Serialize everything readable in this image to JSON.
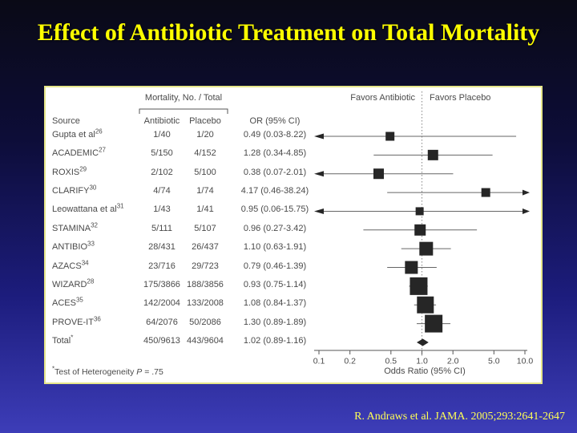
{
  "slide": {
    "title": "Effect of Antibiotic Treatment on Total Mortality",
    "citation": "R. Andraws et al. JAMA. 2005;293:2641-2647"
  },
  "figure": {
    "group_header": "Mortality, No. / Total",
    "favors_left": "Favors Antibiotic",
    "favors_right": "Favors Placebo",
    "xlabel": "Odds Ratio (95% CI)",
    "footnote_symbol": "*",
    "footnote_text": "Test of Heterogeneity ",
    "footnote_stat": "P",
    "footnote_value": " = .75",
    "columns": {
      "source": "Source",
      "antibiotic": "Antibiotic",
      "placebo": "Placebo",
      "or": "OR (95% CI)"
    }
  },
  "chart_data": {
    "type": "forest",
    "x_scale": "log",
    "xlim": [
      0.1,
      10
    ],
    "x_ticks": [
      0.1,
      0.2,
      0.5,
      1.0,
      2.0,
      5.0,
      10.0
    ],
    "x_tick_labels": [
      "0.1",
      "0.2",
      "0.5",
      "1.0",
      "2.0",
      "5.0",
      "10.0"
    ],
    "xlabel": "Odds Ratio (95% CI)",
    "no_effect_line": 1.0,
    "rows": [
      {
        "source": "Gupta et al",
        "ref": "26",
        "antibiotic": "1/40",
        "placebo": "1/20",
        "or_ci": "0.49 (0.03-8.22)",
        "or": 0.49,
        "lo": 0.03,
        "hi": 8.22,
        "size": 11
      },
      {
        "source": "ACADEMIC",
        "ref": "27",
        "antibiotic": "5/150",
        "placebo": "4/152",
        "or_ci": "1.28 (0.34-4.85)",
        "or": 1.28,
        "lo": 0.34,
        "hi": 4.85,
        "size": 13
      },
      {
        "source": "ROXIS",
        "ref": "29",
        "antibiotic": "2/102",
        "placebo": "5/100",
        "or_ci": "0.38 (0.07-2.01)",
        "or": 0.38,
        "lo": 0.07,
        "hi": 2.01,
        "size": 13
      },
      {
        "source": "CLARIFY",
        "ref": "30",
        "antibiotic": "4/74",
        "placebo": "1/74",
        "or_ci": "4.17 (0.46-38.24)",
        "or": 4.17,
        "lo": 0.46,
        "hi": 38.24,
        "size": 11
      },
      {
        "source": "Leowattana et al",
        "ref": "31",
        "antibiotic": "1/43",
        "placebo": "1/41",
        "or_ci": "0.95 (0.06-15.75)",
        "or": 0.95,
        "lo": 0.06,
        "hi": 15.75,
        "size": 10
      },
      {
        "source": "STAMINA",
        "ref": "32",
        "antibiotic": "5/111",
        "placebo": "5/107",
        "or_ci": "0.96 (0.27-3.42)",
        "or": 0.96,
        "lo": 0.27,
        "hi": 3.42,
        "size": 14
      },
      {
        "source": "ANTIBIO",
        "ref": "33",
        "antibiotic": "28/431",
        "placebo": "26/437",
        "or_ci": "1.10 (0.63-1.91)",
        "or": 1.1,
        "lo": 0.63,
        "hi": 1.91,
        "size": 17
      },
      {
        "source": "AZACS",
        "ref": "34",
        "antibiotic": "23/716",
        "placebo": "29/723",
        "or_ci": "0.79 (0.46-1.39)",
        "or": 0.79,
        "lo": 0.46,
        "hi": 1.39,
        "size": 16
      },
      {
        "source": "WIZARD",
        "ref": "28",
        "antibiotic": "175/3866",
        "placebo": "188/3856",
        "or_ci": "0.93 (0.75-1.14)",
        "or": 0.93,
        "lo": 0.75,
        "hi": 1.14,
        "size": 22
      },
      {
        "source": "ACES",
        "ref": "35",
        "antibiotic": "142/2004",
        "placebo": "133/2008",
        "or_ci": "1.08 (0.84-1.37)",
        "or": 1.08,
        "lo": 0.84,
        "hi": 1.37,
        "size": 21
      },
      {
        "source": "PROVE-IT",
        "ref": "36",
        "antibiotic": "64/2076",
        "placebo": "50/2086",
        "or_ci": "1.30 (0.89-1.89)",
        "or": 1.3,
        "lo": 0.89,
        "hi": 1.89,
        "size": 22
      }
    ],
    "total": {
      "source": "Total",
      "ref": "*",
      "antibiotic": "450/9613",
      "placebo": "443/9604",
      "or_ci": "1.02 (0.89-1.16)",
      "or": 1.02,
      "lo": 0.89,
      "hi": 1.16
    }
  },
  "colors": {
    "title": "#ffff00",
    "citation": "#ffff55",
    "panel_border": "#e6e68a",
    "figure_text": "#4a4a4a",
    "marker": "#262626",
    "ci_line": "#666666",
    "axis": "#555555"
  }
}
